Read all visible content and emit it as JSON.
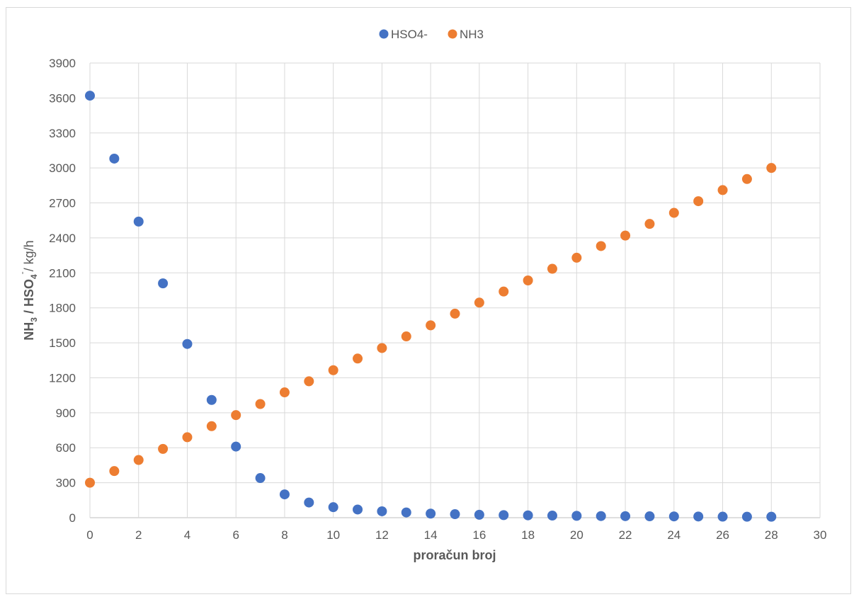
{
  "chart_data": {
    "type": "scatter",
    "title": "",
    "xlabel": "proračun broj",
    "ylabel": {
      "parts": [
        {
          "text": "NH",
          "bold": true
        },
        {
          "text": "3",
          "bold": true,
          "sub": true
        },
        {
          "text": " / HSO",
          "bold": true
        },
        {
          "text": "4",
          "bold": true,
          "sub": true
        },
        {
          "text": "-",
          "bold": false,
          "sup": true
        },
        {
          "text": "/ kg/h",
          "bold": false
        }
      ]
    },
    "xlim": [
      0,
      30
    ],
    "ylim": [
      0,
      3900
    ],
    "xticks": [
      0,
      2,
      4,
      6,
      8,
      10,
      12,
      14,
      16,
      18,
      20,
      22,
      24,
      26,
      28,
      30
    ],
    "yticks": [
      0,
      300,
      600,
      900,
      1200,
      1500,
      1800,
      2100,
      2400,
      2700,
      3000,
      3300,
      3600,
      3900
    ],
    "grid": true,
    "legend_position": "top-center",
    "series": [
      {
        "name": "HSO4-",
        "color": "#4472C4",
        "x": [
          0,
          1,
          2,
          3,
          4,
          5,
          6,
          7,
          8,
          9,
          10,
          11,
          12,
          13,
          14,
          15,
          16,
          17,
          18,
          19,
          20,
          21,
          22,
          23,
          24,
          25,
          26,
          27,
          28
        ],
        "y": [
          3620,
          3080,
          2540,
          2010,
          1490,
          1010,
          610,
          340,
          200,
          130,
          90,
          70,
          55,
          45,
          35,
          30,
          25,
          22,
          20,
          18,
          16,
          14,
          13,
          12,
          11,
          10,
          9,
          8,
          8
        ]
      },
      {
        "name": "NH3",
        "color": "#ED7D31",
        "x": [
          0,
          1,
          2,
          3,
          4,
          5,
          6,
          7,
          8,
          9,
          10,
          11,
          12,
          13,
          14,
          15,
          16,
          17,
          18,
          19,
          20,
          21,
          22,
          23,
          24,
          25,
          26,
          27,
          28
        ],
        "y": [
          300,
          400,
          495,
          590,
          690,
          785,
          880,
          975,
          1075,
          1170,
          1265,
          1365,
          1455,
          1555,
          1650,
          1750,
          1845,
          1940,
          2035,
          2135,
          2230,
          2330,
          2420,
          2520,
          2615,
          2715,
          2810,
          2905,
          3000
        ]
      }
    ]
  }
}
